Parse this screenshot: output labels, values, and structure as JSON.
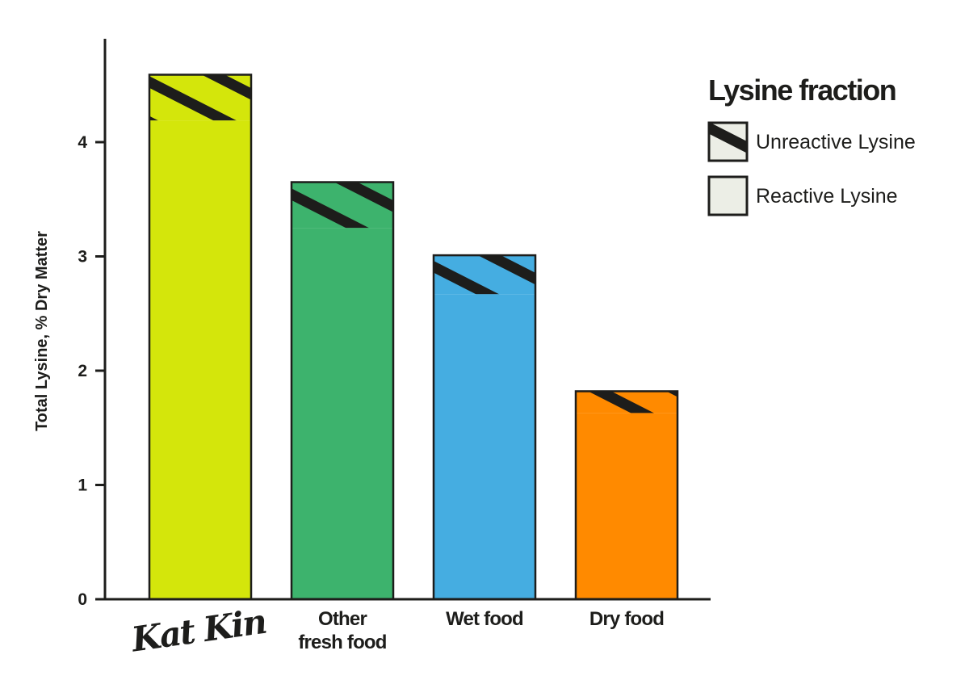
{
  "chart_data": {
    "type": "bar",
    "stacked": true,
    "categories": [
      "Kat Kin",
      "Other fresh food",
      "Wet food",
      "Dry food"
    ],
    "category_lines": [
      [
        "Kat Kin"
      ],
      [
        "Other",
        "fresh food"
      ],
      [
        "Wet food"
      ],
      [
        "Dry food"
      ]
    ],
    "category_is_logo": [
      true,
      false,
      false,
      false
    ],
    "series": [
      {
        "name": "Reactive Lysine",
        "values": [
          4.19,
          3.25,
          2.67,
          1.63
        ]
      },
      {
        "name": "Unreactive Lysine",
        "values": [
          0.4,
          0.4,
          0.34,
          0.19
        ]
      }
    ],
    "totals": [
      4.59,
      3.65,
      3.01,
      1.82
    ],
    "bar_colors": [
      "#d4e60b",
      "#3db36d",
      "#45ade1",
      "#ff8a00"
    ],
    "ylabel": "Total Lysine, % Dry Matter",
    "xlabel": "",
    "ylim": [
      0,
      4.9
    ],
    "yticks": [
      0,
      1,
      2,
      3,
      4
    ],
    "grid": false,
    "legend": {
      "title": "Lysine fraction",
      "placement": "top-right",
      "entries": [
        {
          "label": "Unreactive Lysine",
          "pattern": "hatched"
        },
        {
          "label": "Reactive Lysine",
          "pattern": "solid",
          "color": "#eceee6"
        }
      ]
    },
    "colors": {
      "ink": "#1d1d1b",
      "legend_fill": "#eceee6"
    }
  }
}
